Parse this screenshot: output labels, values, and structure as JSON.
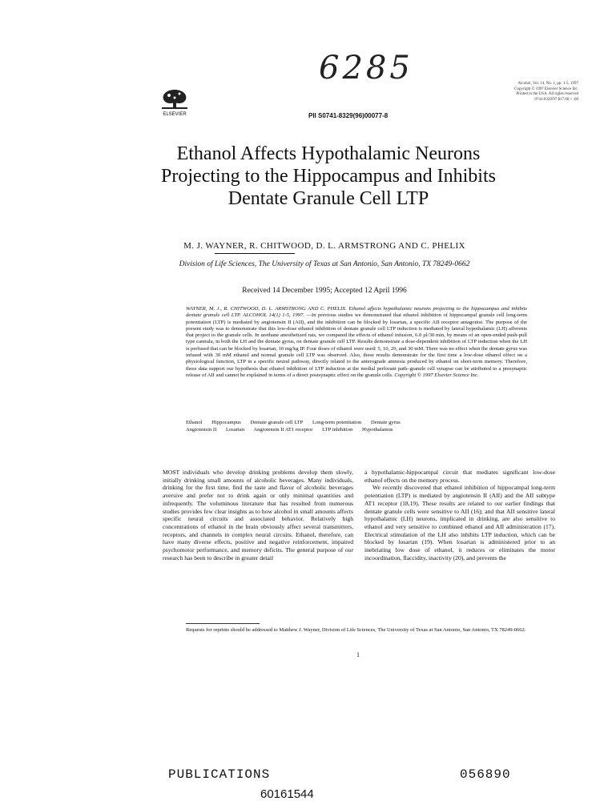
{
  "handwritten_number": "6285",
  "publisher": {
    "logo_text": "ELSEVIER"
  },
  "pii": "PII S0741-8329(96)00077-8",
  "journal_info": [
    "Alcohol, Vol. 14, No. 1, pp. 1-5, 1997",
    "Copyright © 1997 Elsevier Science Inc.",
    "Printed in the USA. All rights reserved",
    "0741-8329/97 $17.00 + .00"
  ],
  "title": "Ethanol Affects Hypothalamic Neurons Projecting to the Hippocampus and Inhibits Dentate Granule Cell LTP",
  "authors": "M. J. WAYNER, R. CHITWOOD, D. L. ARMSTRONG AND C. PHELIX",
  "affiliation": "Division of Life Sciences, The University of Texas at San Antonio, San Antonio, TX 78249-0662",
  "received": "Received 14 December 1995; Accepted 12 April 1996",
  "abstract": {
    "head": "WAYNER, M. J., R. CHITWOOD, D. L. ARMSTRONG AND C. PHELIX. Ethanol affects hypothalamic neurons projecting to the hippocampus and inhibits dentate granule cell LTP. ALCOHOL 14(1) 1-5, 1997.",
    "body": "—In previous studies we demonstrated that ethanol inhibition of hippocampal granule cell long-term potentiation (LTP) is mediated by angiotensin II (AII), and the inhibition can be blocked by losartan, a specific AII receptor antagonist. The purpose of the present study was to demonstrate that this low-dose ethanol inhibition of dentate granule cell LTP induction is mediated by lateral hypothalamic (LH) afferents that project to the granule cells. In urethane anesthetized rats, we compared the effects of ethanol infusion, 6.0 µl/30 min, by means of an open-ended push-pull type cannula, in both the LH and the dentate gyrus, on dentate granule cell LTP. Results demonstrate a dose-dependent inhibition of LTP induction when the LH is perfused that can be blocked by losartan, 10 mg/kg IP. Four doses of ethanol were used: 5, 10, 20, and 30 mM. There was no effect when the dentate gyrus was infused with 30 mM ethanol and normal granule cell LTP was observed. Also, these results demonstrate for the first time a low-dose ethanol effect on a physiological function, LTP in a specific neural pathway, directly related to the anterograde amnesia produced by ethanol on short-term memory. Therefore, these data support our hypothesis that ethanol inhibition of LTP induction at the medial perforant path–granule cell synapse can be attributed to a presynaptic release of AII and cannot be explained in terms of a direct postsynaptic effect on the granule cells.",
    "copyright": "Copyright © 1997 Elsevier Science Inc."
  },
  "keywords": {
    "line1": [
      "Ethanol",
      "Hippocampus",
      "Dentate granule cell LTP",
      "Long-term potentiation",
      "Dentate gyrus"
    ],
    "line2": [
      "Angiotensin II",
      "Losartan",
      "Angiotensin II AT1 receptor",
      "LTP inhibition",
      "Hypothalamus"
    ]
  },
  "body": {
    "left": "MOST individuals who develop drinking problems develop them slowly, initially drinking small amounts of alcoholic beverages. Many individuals, drinking for the first time, find the taste and flavor of alcoholic beverages aversive and prefer not to drink again or only minimal quantities and infrequently. The voluminous literature that has resulted from numerous studies provides few clear insights as to how alcohol in small amounts affects specific neural circuits and associated behavior. Relatively high concentrations of ethanol in the brain obviously affect several transmitters, receptors, and channels in complex neural circuits. Ethanol, therefore, can have many diverse effects, positive and negative reinforcement, impaired psychomotor performance, and memory deficits. The general purpose of our research has been to describe in greater detail",
    "right_p1": "a hypothalamic-hippocampal circuit that mediates significant low-dose ethanol effects on the memory process.",
    "right_p2": "We recently discovered that ethanol inhibition of hippocampal long-term potentiation (LTP) is mediated by angiotensin II (AII) and the AII subtype AT1 receptor (18,19). These results are related to our earlier findings that dentate granule cells were sensitive to AII (16); and that AII sensitive lateral hypothalamic (LH) neurons, implicated in drinking, are also sensitive to ethanol and very sensitive to combined ethanol and AII administration (17). Electrical stimulation of the LH also inhibits LTP induction, which can be blocked by losartan (19). When losartan is administered prior to an inebriating low dose of ethanol, it reduces or eliminates the motor incoordination, flaccidity, inactivity (20), and prevents the"
  },
  "footnote": "Requests for reprints should be addressed to Matthew J. Wayner, Division of Life Sciences, The University of Texas at San Antonio, San Antonio, TX 78249-0662.",
  "page_number": "1",
  "stamp": {
    "left": "PUBLICATIONS",
    "right": "056890"
  },
  "bottom_id": "60161544"
}
